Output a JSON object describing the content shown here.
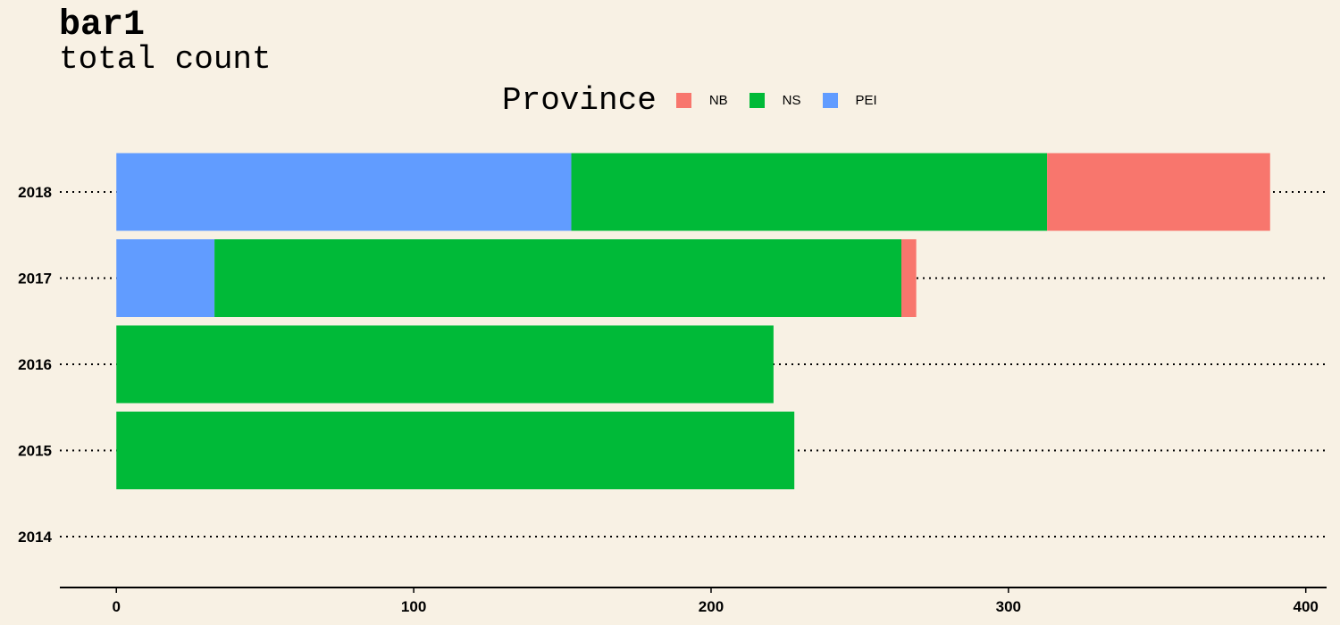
{
  "chart_data": {
    "type": "bar",
    "orientation": "horizontal",
    "stacked": true,
    "title": "bar1",
    "subtitle": "total count",
    "legend_title": "Province",
    "legend_position": "top",
    "categories": [
      "2014",
      "2015",
      "2016",
      "2017",
      "2018"
    ],
    "series": [
      {
        "name": "NB",
        "color": "#F8766D",
        "values": [
          0,
          0,
          0,
          5,
          75
        ]
      },
      {
        "name": "NS",
        "color": "#00BA38",
        "values": [
          0,
          228,
          221,
          231,
          160
        ]
      },
      {
        "name": "PEI",
        "color": "#619CFF",
        "values": [
          0,
          0,
          0,
          33,
          153
        ]
      }
    ],
    "stack_order_from_zero": [
      "PEI",
      "NS",
      "NB"
    ],
    "xlim": [
      -19,
      407
    ],
    "x_ticks": [
      0,
      100,
      200,
      300,
      400
    ],
    "grid": "dotted horizontal gridlines at each category"
  }
}
